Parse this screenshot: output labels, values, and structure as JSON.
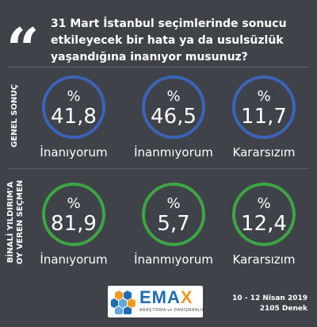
{
  "question": "31 Mart İstanbul seçimlerinde sonucu etkileyecek bir hata ya da usulsüzlük yaşandığına inanıyor musunuz?",
  "percent_symbol": "%",
  "colors": {
    "background": "#3f4248",
    "general_ring": "#3b63b8",
    "yildirim_ring": "#3ea543",
    "logo_blue": "#1e6bb8",
    "logo_orange": "#f39a1e"
  },
  "chart_data": [
    {
      "type": "table",
      "section": "GENEL SONUÇ",
      "categories": [
        "İnanıyorum",
        "İnanmıyorum",
        "Kararsızım"
      ],
      "values": [
        41.8,
        46.5,
        11.7
      ],
      "value_labels": [
        "41,8",
        "46,5",
        "11,7"
      ],
      "unit": "%"
    },
    {
      "type": "table",
      "section": "BİNALİ YILDIRIM'A OY VEREN SEÇMEN",
      "section_lines": [
        "BİNALİ YILDIRIM'A",
        "OY VEREN SEÇMEN"
      ],
      "categories": [
        "İnanıyorum",
        "İnanmıyorum",
        "Kararsızım"
      ],
      "values": [
        81.9,
        5.7,
        12.4
      ],
      "value_labels": [
        "81,9",
        "5,7",
        "12,4"
      ],
      "unit": "%"
    }
  ],
  "footer": {
    "logo_main": "EMA",
    "logo_x": "X",
    "logo_sub": "ARAŞTIRMA ve DANIŞMANLIK",
    "survey_date": "10 - 12 Nisan 2019",
    "sample": "2105 Denek"
  }
}
